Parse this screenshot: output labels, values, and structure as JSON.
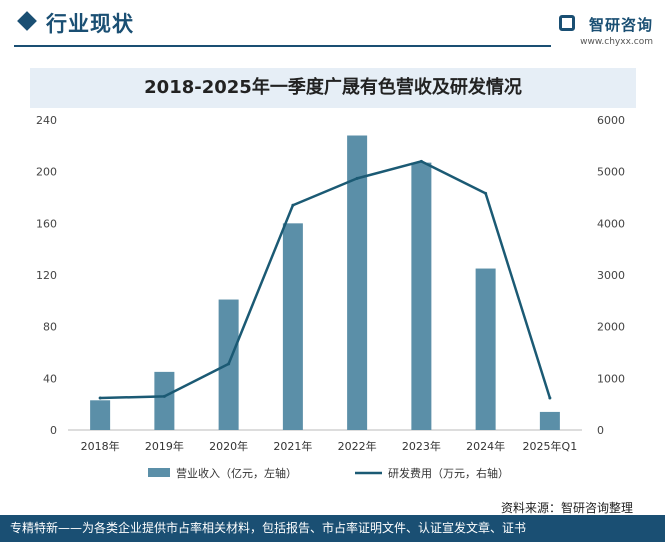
{
  "header": {
    "section_title": "行业现状",
    "brand_name": "智研咨询",
    "brand_url": "www.chyxx.com"
  },
  "chart_data": {
    "type": "bar",
    "title": "2018-2025年一季度广晟有色营收及研发情况",
    "categories": [
      "2018年",
      "2019年",
      "2020年",
      "2021年",
      "2022年",
      "2023年",
      "2024年",
      "2025年Q1"
    ],
    "y_left": {
      "min": 0,
      "max": 240,
      "ticks": [
        0,
        40,
        80,
        120,
        160,
        200,
        240
      ]
    },
    "y_right": {
      "min": 0,
      "max": 6000,
      "ticks": [
        0,
        1000,
        2000,
        3000,
        4000,
        5000,
        6000
      ]
    },
    "series": [
      {
        "name": "营业收入（亿元，左轴）",
        "type": "bar",
        "axis": "left",
        "color": "#5b8fa8",
        "values": [
          23,
          45,
          101,
          160,
          228,
          207,
          125,
          14
        ]
      },
      {
        "name": "研发费用（万元，右轴）",
        "type": "line",
        "axis": "right",
        "color": "#1b5a74",
        "values": [
          620,
          650,
          1280,
          4350,
          4870,
          5200,
          4580,
          620
        ]
      }
    ],
    "legend_position": "bottom",
    "grid": false
  },
  "source": "资料来源：智研咨询整理",
  "footer": "专精特新——为各类企业提供市占率相关材料，包括报告、市占率证明文件、认证宣发文章、证书"
}
